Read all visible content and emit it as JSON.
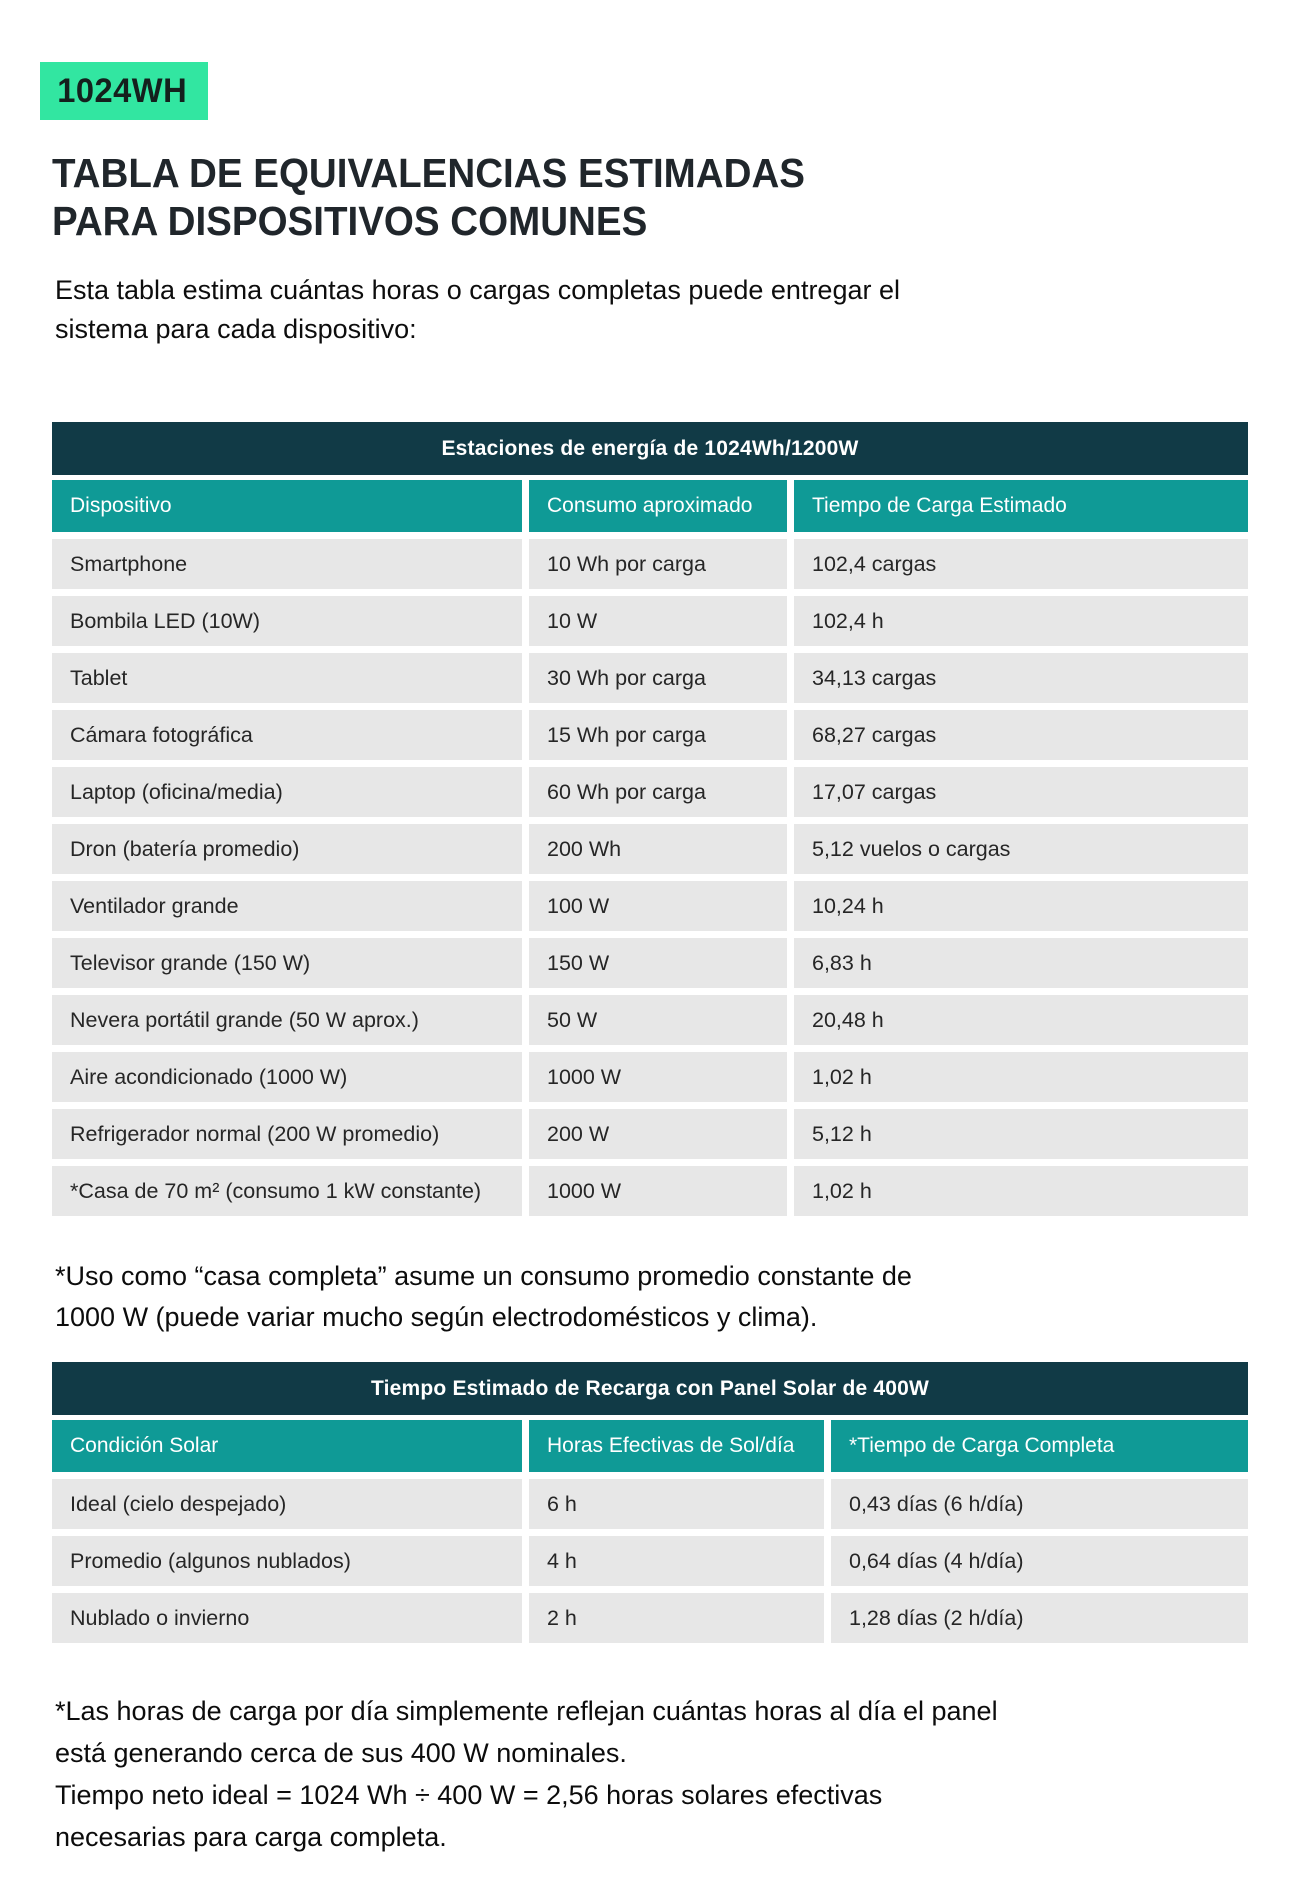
{
  "colors": {
    "badge_bg": "#32E6A1",
    "table_title_bg": "#113A46",
    "column_header_bg": "#0F9A96",
    "row_bg": "#E7E7E7",
    "text_dark": "#1D2226"
  },
  "badge": {
    "label": "1024WH"
  },
  "title": {
    "line1": "TABLA DE EQUIVALENCIAS ESTIMADAS",
    "line2": "PARA DISPOSITIVOS COMUNES"
  },
  "intro": {
    "line1": "Esta tabla estima cuántas horas o cargas completas puede entregar el",
    "line2": "sistema para cada dispositivo:"
  },
  "table1": {
    "title": "Estaciones de energía de 1024Wh/1200W",
    "headers": [
      "Dispositivo",
      "Consumo aproximado",
      "Tiempo de Carga Estimado"
    ],
    "rows": [
      {
        "device": "Smartphone",
        "consumption": "10 Wh por carga",
        "time": "102,4 cargas"
      },
      {
        "device": "Bombila LED (10W)",
        "consumption": "10 W",
        "time": "102,4 h"
      },
      {
        "device": "Tablet",
        "consumption": "30 Wh por carga",
        "time": "34,13 cargas"
      },
      {
        "device": "Cámara fotográfica",
        "consumption": "15 Wh por carga",
        "time": "68,27 cargas"
      },
      {
        "device": "Laptop (oficina/media)",
        "consumption": "60 Wh por carga",
        "time": "17,07 cargas"
      },
      {
        "device": "Dron (batería promedio)",
        "consumption": "200 Wh",
        "time": "5,12 vuelos o cargas"
      },
      {
        "device": "Ventilador grande",
        "consumption": "100 W",
        "time": "10,24 h"
      },
      {
        "device": "Televisor grande (150 W)",
        "consumption": "150 W",
        "time": "6,83 h"
      },
      {
        "device": "Nevera portátil grande (50 W aprox.)",
        "consumption": "50 W",
        "time": "20,48 h"
      },
      {
        "device": "Aire acondicionado (1000 W)",
        "consumption": "1000 W",
        "time": "1,02 h"
      },
      {
        "device": "Refrigerador normal (200 W promedio)",
        "consumption": "200 W",
        "time": "5,12 h"
      },
      {
        "device": "*Casa de 70 m² (consumo 1 kW constante)",
        "consumption": "1000 W",
        "time": "1,02 h"
      }
    ]
  },
  "note1": {
    "line1": "*Uso como “casa completa” asume un consumo promedio constante de",
    "line2": "1000 W (puede variar mucho según electrodomésticos y clima)."
  },
  "table2": {
    "title": "Tiempo Estimado de Recarga con Panel Solar de 400W",
    "headers": [
      "Condición Solar",
      "Horas Efectivas de Sol/día",
      "*Tiempo de Carga Completa"
    ],
    "rows": [
      {
        "condition": "Ideal (cielo despejado)",
        "sun_hours": "6 h",
        "full_charge_time": "0,43 días (6 h/día)"
      },
      {
        "condition": "Promedio (algunos nublados)",
        "sun_hours": "4 h",
        "full_charge_time": "0,64 días (4 h/día)"
      },
      {
        "condition": "Nublado o invierno",
        "sun_hours": "2 h",
        "full_charge_time": "1,28 días (2 h/día)"
      }
    ]
  },
  "note2": {
    "line1": "*Las horas de carga por día simplemente reflejan cuántas horas al día el panel",
    "line2": "está generando cerca de sus 400 W nominales.",
    "line3": "Tiempo neto ideal = 1024 Wh ÷ 400 W = 2,56 horas solares efectivas",
    "line4": "necesarias para carga completa."
  }
}
